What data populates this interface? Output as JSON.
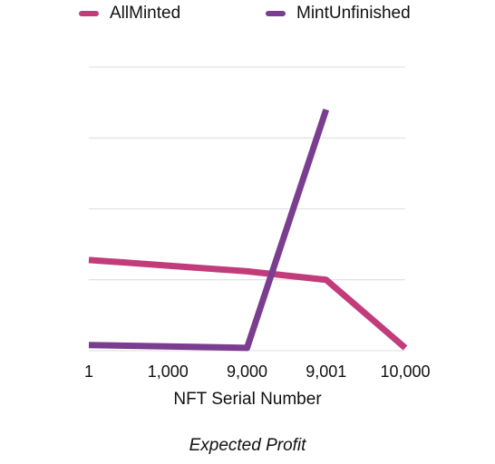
{
  "chart_data": {
    "type": "line",
    "categories": [
      "1",
      "1,000",
      "9,000",
      "9,001",
      "10,000"
    ],
    "series": [
      {
        "name": "AllMinted",
        "color": "#c23b7a",
        "values": [
          3.2,
          3.0,
          2.8,
          2.5,
          0.1
        ]
      },
      {
        "name": "MintUnfinished",
        "color": "#7a3d8f",
        "values": [
          0.2,
          0.15,
          0.1,
          8.5,
          null
        ]
      }
    ],
    "xlabel": "NFT Serial Number",
    "caption": "Expected Profit",
    "ylim": [
      0,
      10
    ],
    "grid": true,
    "legend_position": "top"
  }
}
